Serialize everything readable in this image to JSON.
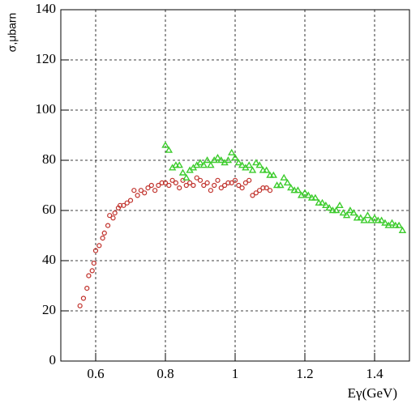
{
  "chart_data": {
    "type": "scatter",
    "x_label": "Eγ(GeV)",
    "y_label": "σ,μbarn",
    "xlim": [
      0.5,
      1.5
    ],
    "ylim": [
      0,
      140
    ],
    "xticks": [
      0.6,
      0.8,
      1,
      1.2,
      1.4
    ],
    "yticks": [
      0,
      20,
      40,
      60,
      80,
      100,
      120,
      140
    ],
    "grid": true,
    "series": [
      {
        "color": "#c0302a",
        "marker": "circle",
        "x": [
          0.555,
          0.565,
          0.575,
          0.58,
          0.59,
          0.595,
          0.6,
          0.61,
          0.62,
          0.625,
          0.635,
          0.64,
          0.65,
          0.655,
          0.665,
          0.67,
          0.68,
          0.69,
          0.7,
          0.71,
          0.72,
          0.73,
          0.74,
          0.75,
          0.76,
          0.77,
          0.78,
          0.79,
          0.8,
          0.81,
          0.82,
          0.83,
          0.84,
          0.85,
          0.86,
          0.87,
          0.88,
          0.89,
          0.9,
          0.91,
          0.92,
          0.93,
          0.94,
          0.95,
          0.96,
          0.97,
          0.98,
          0.99,
          1.0,
          1.01,
          1.02,
          1.03,
          1.04,
          1.05,
          1.06,
          1.07,
          1.08,
          1.09,
          1.1
        ],
        "values": [
          22,
          25,
          29,
          34,
          36,
          39,
          44,
          46,
          49,
          51,
          54,
          58,
          57,
          59,
          61,
          62,
          62,
          63,
          64,
          68,
          66,
          68,
          67,
          69,
          70,
          68,
          70,
          71,
          71,
          70,
          72,
          71,
          69,
          72,
          70,
          71,
          70,
          73,
          72,
          70,
          71,
          68,
          70,
          72,
          69,
          70,
          71,
          71,
          72,
          70,
          69,
          71,
          72,
          66,
          67,
          68,
          69,
          69,
          68
        ]
      },
      {
        "color": "#3ccc2c",
        "marker": "triangle",
        "x": [
          0.8,
          0.81,
          0.82,
          0.83,
          0.84,
          0.85,
          0.86,
          0.87,
          0.88,
          0.89,
          0.9,
          0.91,
          0.92,
          0.93,
          0.94,
          0.95,
          0.96,
          0.97,
          0.98,
          0.99,
          1.0,
          1.01,
          1.02,
          1.03,
          1.04,
          1.05,
          1.06,
          1.07,
          1.08,
          1.09,
          1.1,
          1.11,
          1.12,
          1.13,
          1.14,
          1.15,
          1.16,
          1.17,
          1.18,
          1.19,
          1.2,
          1.21,
          1.22,
          1.23,
          1.24,
          1.25,
          1.26,
          1.27,
          1.28,
          1.29,
          1.3,
          1.31,
          1.32,
          1.33,
          1.34,
          1.35,
          1.36,
          1.37,
          1.38,
          1.39,
          1.4,
          1.41,
          1.42,
          1.43,
          1.44,
          1.45,
          1.46,
          1.47,
          1.48
        ],
        "values": [
          86,
          84,
          77,
          78,
          78,
          75,
          73,
          76,
          77,
          78,
          79,
          78,
          80,
          78,
          80,
          81,
          80,
          79,
          80,
          83,
          81,
          79,
          78,
          77,
          78,
          76,
          79,
          78,
          76,
          76,
          74,
          74,
          70,
          70,
          73,
          71,
          69,
          68,
          68,
          66,
          67,
          66,
          65,
          65,
          63,
          63,
          62,
          61,
          60,
          60,
          62,
          59,
          58,
          60,
          59,
          57,
          57,
          56,
          58,
          56,
          57,
          56,
          56,
          55,
          54,
          55,
          54,
          54,
          52
        ]
      }
    ]
  }
}
